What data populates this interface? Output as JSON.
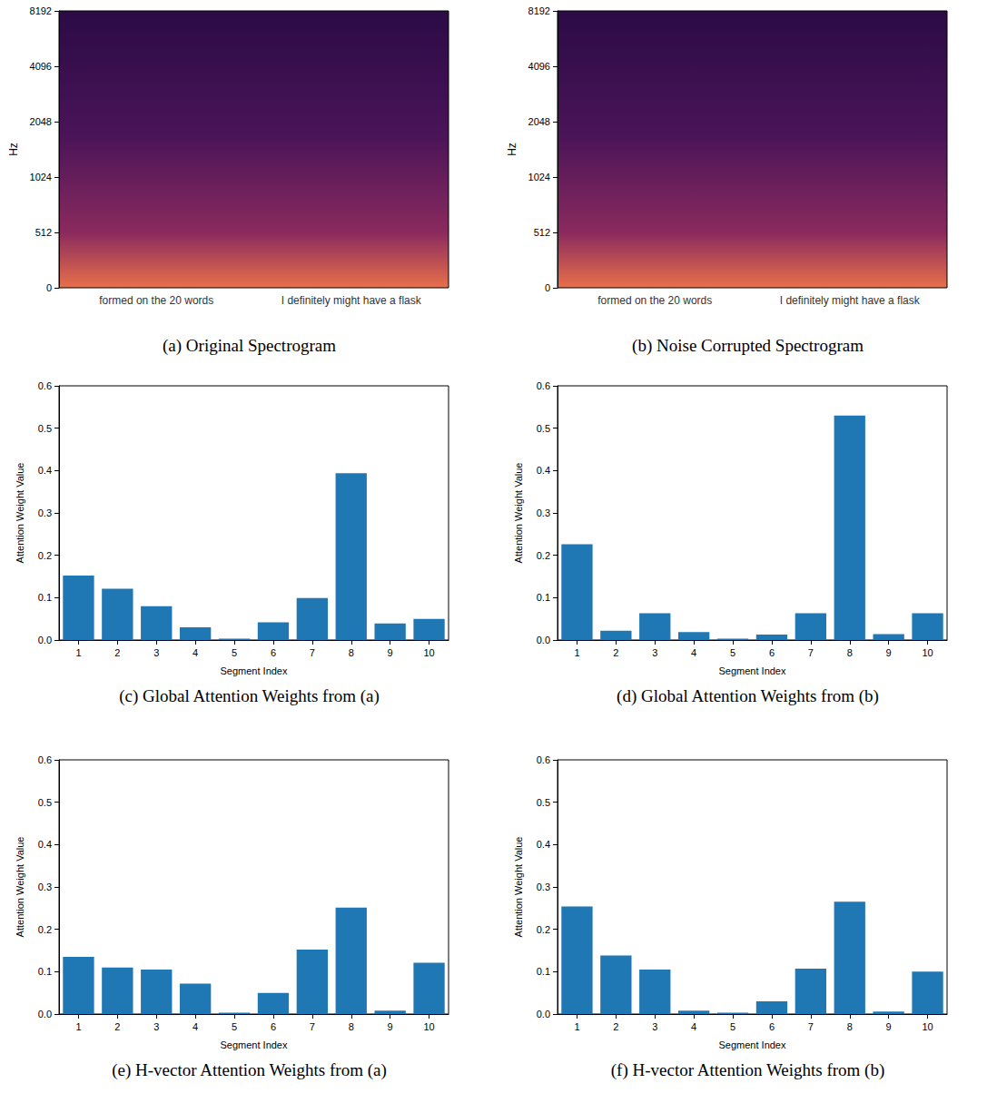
{
  "chart_data": [
    {
      "type": "spectrogram",
      "caption": "(a) Original Spectrogram",
      "ylabel": "Hz",
      "yticks": [
        0,
        512,
        1024,
        2048,
        4096,
        8192
      ],
      "categories": [
        "formed on the 20 words",
        "I definitely might have a flask"
      ]
    },
    {
      "type": "spectrogram",
      "caption": "(b) Noise Corrupted Spectrogram",
      "ylabel": "Hz",
      "yticks": [
        0,
        512,
        1024,
        2048,
        4096,
        8192
      ],
      "categories": [
        "formed on the 20 words",
        "I definitely might have a flask"
      ]
    },
    {
      "type": "bar",
      "caption": "(c) Global Attention Weights from (a)",
      "xlabel": "Segment Index",
      "ylabel": "Attention Weight Value",
      "categories": [
        "1",
        "2",
        "3",
        "4",
        "5",
        "6",
        "7",
        "8",
        "9",
        "10"
      ],
      "values": [
        0.152,
        0.121,
        0.08,
        0.03,
        0.003,
        0.042,
        0.099,
        0.394,
        0.039,
        0.05
      ],
      "color": "#1f77b4",
      "ylim": [
        0,
        0.6
      ],
      "yticks": [
        {
          "value": 0,
          "label": "0.0"
        },
        0.1,
        0.2,
        0.3,
        0.4,
        0.5,
        0.6
      ]
    },
    {
      "type": "bar",
      "caption": "(d) Global Attention Weights from (b)",
      "xlabel": "Segment Index",
      "ylabel": "Attention Weight Value",
      "categories": [
        "1",
        "2",
        "3",
        "4",
        "5",
        "6",
        "7",
        "8",
        "9",
        "10"
      ],
      "values": [
        0.226,
        0.022,
        0.063,
        0.019,
        0.003,
        0.013,
        0.063,
        0.53,
        0.014,
        0.063
      ],
      "color": "#1f77b4",
      "ylim": [
        0,
        0.6
      ],
      "yticks": [
        {
          "value": 0,
          "label": "0.0"
        },
        0.1,
        0.2,
        0.3,
        0.4,
        0.5,
        0.6
      ]
    },
    {
      "type": "bar",
      "caption": "(e) H-vector Attention Weights from (a)",
      "xlabel": "Segment Index",
      "ylabel": "Attention Weight Value",
      "categories": [
        "1",
        "2",
        "3",
        "4",
        "5",
        "6",
        "7",
        "8",
        "9",
        "10"
      ],
      "values": [
        0.135,
        0.11,
        0.105,
        0.072,
        0.003,
        0.05,
        0.152,
        0.251,
        0.008,
        0.121
      ],
      "color": "#1f77b4",
      "ylim": [
        0,
        0.6
      ],
      "yticks": [
        {
          "value": 0,
          "label": "0.0"
        },
        0.1,
        0.2,
        0.3,
        0.4,
        0.5,
        0.6
      ]
    },
    {
      "type": "bar",
      "caption": "(f) H-vector Attention Weights from (b)",
      "xlabel": "Segment Index",
      "ylabel": "Attention Weight Value",
      "categories": [
        "1",
        "2",
        "3",
        "4",
        "5",
        "6",
        "7",
        "8",
        "9",
        "10"
      ],
      "values": [
        0.254,
        0.138,
        0.105,
        0.008,
        0.003,
        0.03,
        0.107,
        0.265,
        0.006,
        0.1
      ],
      "color": "#1f77b4",
      "ylim": [
        0,
        0.6
      ],
      "yticks": [
        {
          "value": 0,
          "label": "0.0"
        },
        0.1,
        0.2,
        0.3,
        0.4,
        0.5,
        0.6
      ]
    }
  ]
}
